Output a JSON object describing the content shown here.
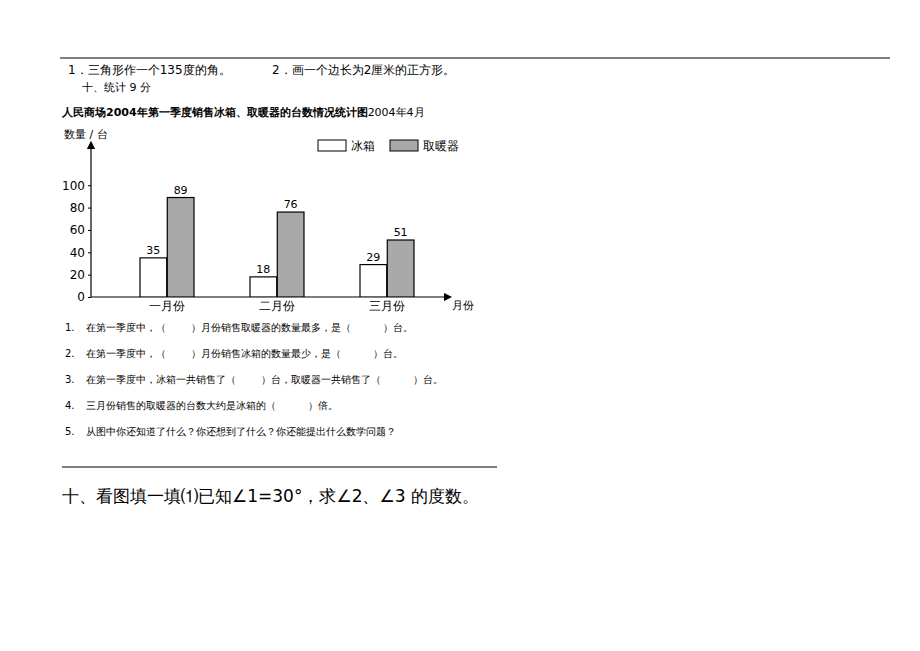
{
  "header_items": [
    "1．三角形作一个135度的角。",
    "2．画一个边长为2厘米的正方形。"
  ],
  "section_title": "十、统计 9 分",
  "chart_data": {
    "type": "bar",
    "title": "人民商场2004年第一季度销售冰箱、取暖器的台数情况统计图",
    "subtitle": "2004年4月",
    "y_label": "数量 / 台",
    "x_label": "月份",
    "categories": [
      "一月份",
      "二月份",
      "三月份"
    ],
    "series": [
      {
        "name": "冰箱",
        "color": "#ffffff",
        "values": [
          35,
          18,
          29
        ]
      },
      {
        "name": "取暖器",
        "color": "#a9a9a9",
        "values": [
          89,
          76,
          51
        ]
      }
    ],
    "ylim": [
      0,
      136
    ],
    "yticks": [
      0,
      20,
      40,
      60,
      80,
      100
    ],
    "grid": false,
    "legend": "top-right",
    "data_labels": true
  },
  "questions": [
    {
      "number": "1.",
      "text": "在第一季度中，（        ）月份销售取暖器的数量最多，是（          ）台。"
    },
    {
      "number": "2.",
      "text": "在第一季度中，（        ）月份销售冰箱的数量最少，是（          ）台。"
    },
    {
      "number": "3.",
      "text": "在第一季度中，冰箱一共销售了（        ）台，取暖器一共销售了（          ）台。"
    },
    {
      "number": "4.",
      "text": "三月份销售的取暖器的台数大约是冰箱的（          ）倍。"
    },
    {
      "number": "5.",
      "text": "从图中你还知道了什么？你还想到了什么？你还能提出什么数学问题？"
    }
  ],
  "next_section": "十、看图填一填⑴已知∠1=30°，求∠2、∠3 的度数。"
}
